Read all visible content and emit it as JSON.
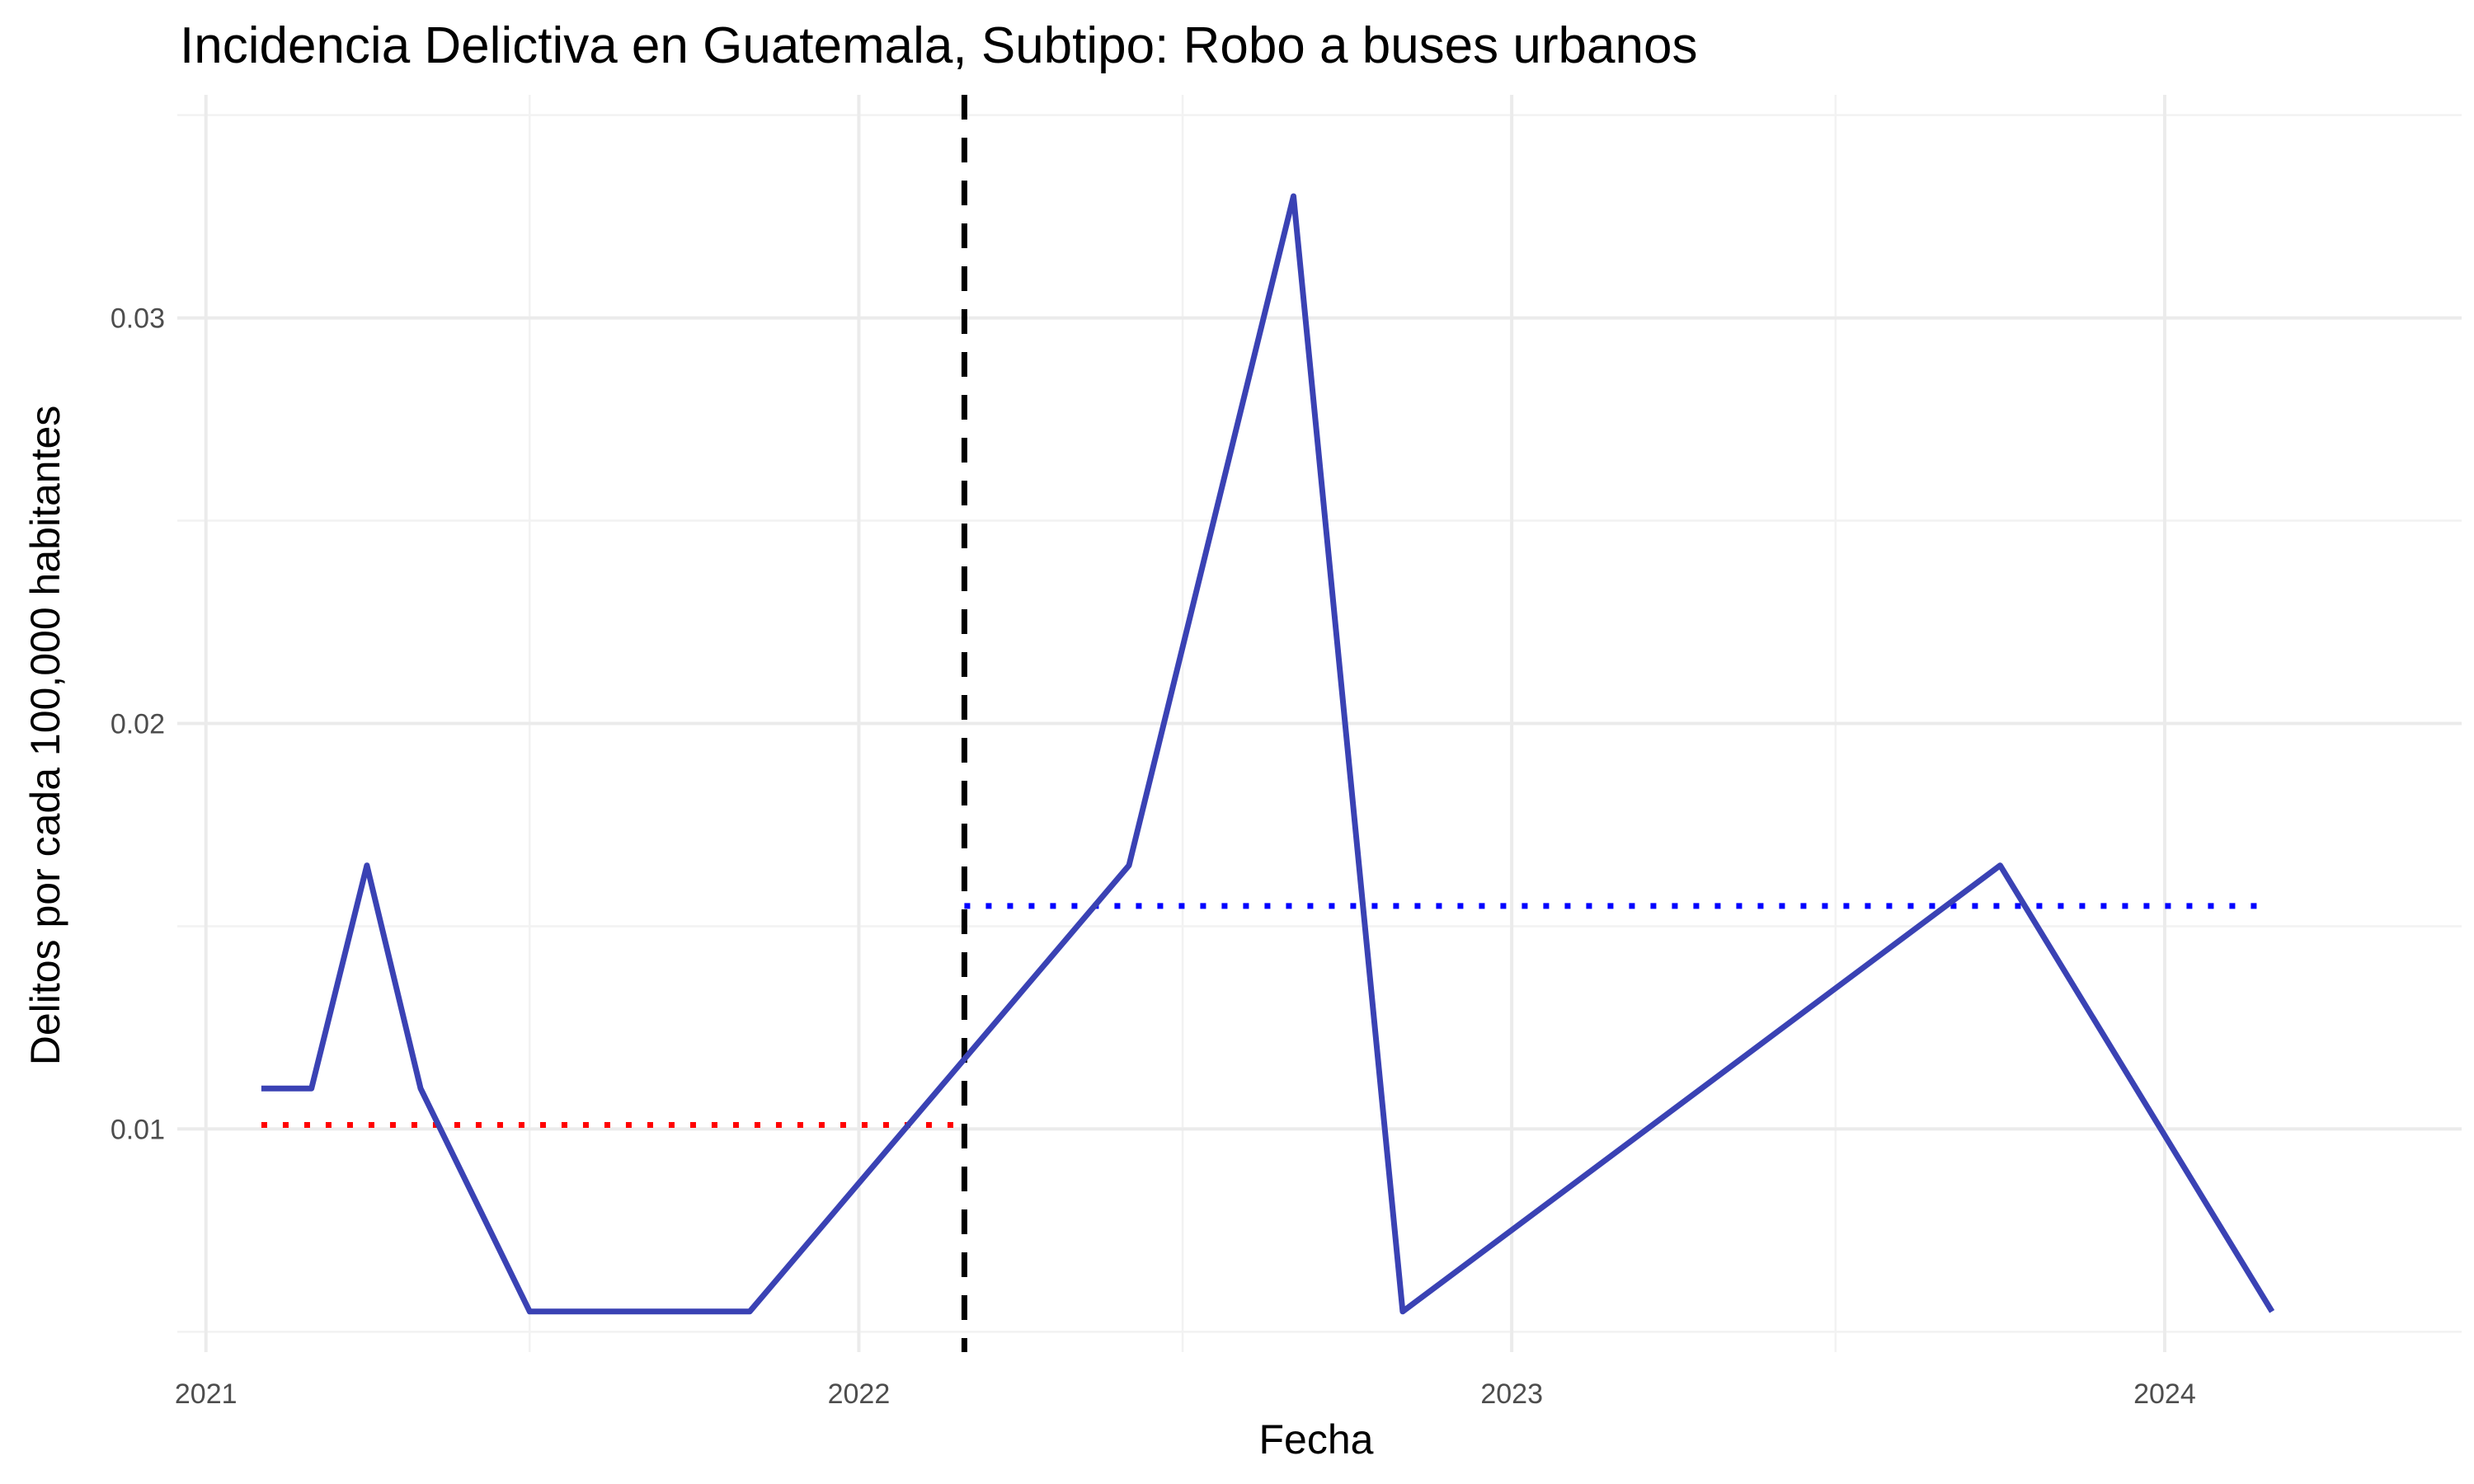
{
  "chart_data": {
    "type": "line",
    "title": "Incidencia Delictiva en Guatemala, Subtipo: Robo a buses urbanos",
    "xlabel": "Fecha",
    "ylabel": "Delitos por cada 100,000 habitantes",
    "x_ticks": [
      "2021",
      "2022",
      "2023",
      "2024"
    ],
    "y_ticks": [
      "0.01",
      "0.02",
      "0.03"
    ],
    "xlim": [
      "2020-12-16",
      "2024-06-15"
    ],
    "ylim": [
      0.0045,
      0.0355
    ],
    "grid": true,
    "series": [
      {
        "color": "#3a42b4",
        "points": [
          {
            "x": "2021-02-01",
            "y": 0.011
          },
          {
            "x": "2021-03-01",
            "y": 0.011
          },
          {
            "x": "2021-04-01",
            "y": 0.0165
          },
          {
            "x": "2021-05-01",
            "y": 0.011
          },
          {
            "x": "2021-07-01",
            "y": 0.0055
          },
          {
            "x": "2021-11-01",
            "y": 0.0055
          },
          {
            "x": "2022-06-01",
            "y": 0.0165
          },
          {
            "x": "2022-09-01",
            "y": 0.033
          },
          {
            "x": "2022-11-01",
            "y": 0.0055
          },
          {
            "x": "2023-10-01",
            "y": 0.0165
          },
          {
            "x": "2024-03-01",
            "y": 0.0055
          }
        ]
      }
    ],
    "reference_lines": [
      {
        "orientation": "vertical",
        "x": "2022-03-01",
        "style": "dashed",
        "color": "#000000"
      },
      {
        "orientation": "horizontal",
        "y": 0.0101,
        "x_start": "2021-02-01",
        "x_end": "2022-03-01",
        "style": "dotted",
        "color": "#ff0000"
      },
      {
        "orientation": "horizontal",
        "y": 0.0155,
        "x_start": "2022-03-01",
        "x_end": "2024-03-01",
        "style": "dotted",
        "color": "#0000ff"
      }
    ]
  }
}
